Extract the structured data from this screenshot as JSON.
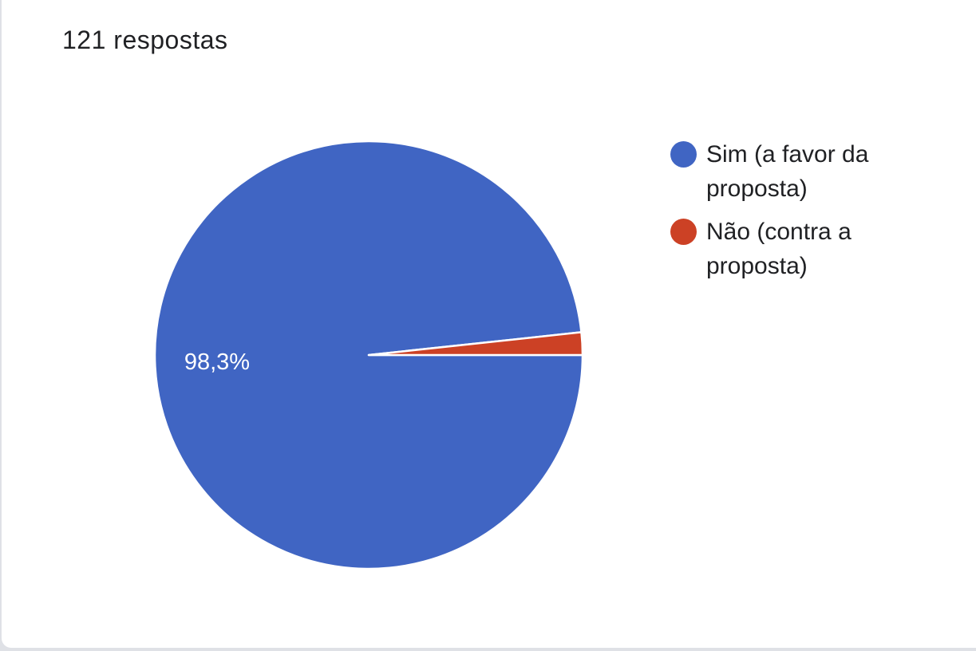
{
  "chart_data": {
    "type": "pie",
    "title": "121 respostas",
    "categories": [
      "Sim (a favor da proposta)",
      "Não (contra a proposta)"
    ],
    "values": [
      98.3,
      1.7
    ],
    "value_labels": [
      "98,3%",
      null
    ],
    "colors": [
      "#4065c3",
      "#cc4125"
    ]
  }
}
